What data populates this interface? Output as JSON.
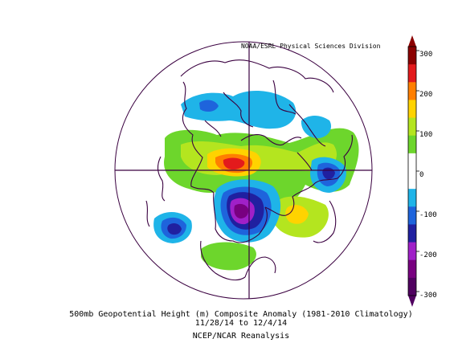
{
  "credit": "NOAA/ESRL Physical Sciences Division",
  "caption": {
    "line1": "500mb Geopotential Height (m) Composite Anomaly (1981-2010 Climatology)",
    "line2": "11/28/14  to 12/4/14",
    "line3": "NCEP/NCAR Reanalysis"
  },
  "colorbar": {
    "labels": [
      "300",
      "200",
      "100",
      "0",
      "-100",
      "-200",
      "-300"
    ],
    "colors": [
      "#8b0000",
      "#e31a1c",
      "#ff7f00",
      "#ffd300",
      "#b4e51f",
      "#6dd62c",
      "#ffffff",
      "#ffffff",
      "#1fb4e8",
      "#1e64dc",
      "#2020a0",
      "#a020c8",
      "#780080",
      "#500060"
    ]
  },
  "anomaly_palette": {
    "pos_low": "#6dd62c",
    "pos_mid": "#b4e51f",
    "pos_high": "#ffd300",
    "pos_higher": "#ff7f00",
    "pos_max": "#e31a1c",
    "neg_low": "#1fb4e8",
    "neg_mid": "#1e64dc",
    "neg_high": "#2020a0",
    "neg_higher": "#a020c8",
    "neg_max": "#780080"
  }
}
